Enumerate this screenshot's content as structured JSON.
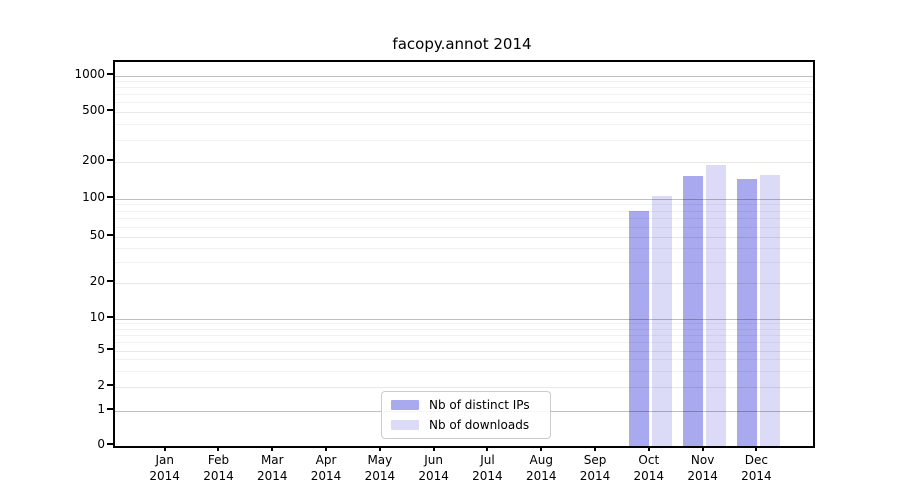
{
  "figure": {
    "title": "facopy.annot 2014"
  },
  "chart_data": {
    "type": "bar",
    "title": "facopy.annot 2014",
    "categories": [
      "Jan",
      "Feb",
      "Mar",
      "Apr",
      "May",
      "Jun",
      "Jul",
      "Aug",
      "Sep",
      "Oct",
      "Nov",
      "Dec"
    ],
    "x_tick_year": "2014",
    "series": [
      {
        "name": "Nb of distinct IPs",
        "color": "#a9a9ef",
        "values": [
          0,
          0,
          0,
          0,
          0,
          0,
          0,
          0,
          0,
          80,
          153,
          144
        ]
      },
      {
        "name": "Nb of downloads",
        "color": "#dbdbf8",
        "values": [
          0,
          0,
          0,
          0,
          0,
          0,
          0,
          0,
          0,
          105,
          188,
          157
        ]
      }
    ],
    "y_ticks": [
      0,
      1,
      2,
      5,
      10,
      20,
      50,
      100,
      200,
      500,
      1000
    ],
    "y_scale": "symlog",
    "ylim": [
      0,
      1200
    ],
    "grid": true,
    "legend_position": "lower center",
    "colors": {
      "axis": "#000000",
      "major_grid": "#bfbfbf",
      "minor_grid": "#f1f1f1"
    }
  }
}
